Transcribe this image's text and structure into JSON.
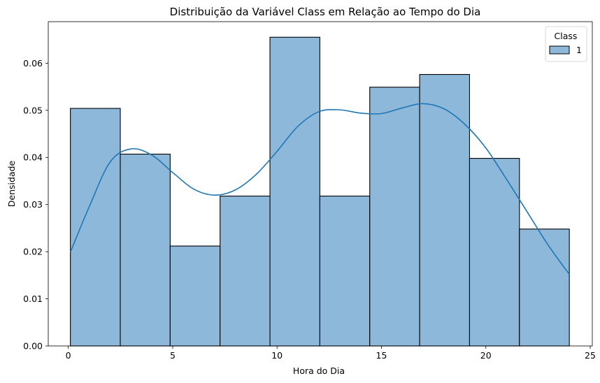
{
  "chart_data": {
    "type": "histogram",
    "title": "Distribuição da Variável Class em Relação ao Tempo do Dia",
    "xlabel": "Hora do Dia",
    "ylabel": "Densidade",
    "xlim": [
      -0.96,
      25.1
    ],
    "ylim": [
      0,
      0.0688
    ],
    "x_ticks": [
      0,
      5,
      10,
      15,
      20,
      25
    ],
    "y_ticks": [
      0.0,
      0.01,
      0.02,
      0.03,
      0.04,
      0.05,
      0.06
    ],
    "y_tick_labels": [
      "0.00",
      "0.01",
      "0.02",
      "0.03",
      "0.04",
      "0.05",
      "0.06"
    ],
    "bins": [
      {
        "x0": 0.1,
        "x1": 2.49,
        "value": 0.0504
      },
      {
        "x0": 2.49,
        "x1": 4.88,
        "value": 0.0407
      },
      {
        "x0": 4.88,
        "x1": 7.27,
        "value": 0.0212
      },
      {
        "x0": 7.27,
        "x1": 9.66,
        "value": 0.0318
      },
      {
        "x0": 9.66,
        "x1": 12.05,
        "value": 0.0655
      },
      {
        "x0": 12.05,
        "x1": 14.44,
        "value": 0.0318
      },
      {
        "x0": 14.44,
        "x1": 16.83,
        "value": 0.0549
      },
      {
        "x0": 16.83,
        "x1": 19.22,
        "value": 0.0576
      },
      {
        "x0": 19.22,
        "x1": 21.61,
        "value": 0.0398
      },
      {
        "x0": 21.61,
        "x1": 24.0,
        "value": 0.0248
      }
    ],
    "kde": {
      "x": [
        0.1,
        1.0,
        2.0,
        3.0,
        4.0,
        5.0,
        6.0,
        7.0,
        8.0,
        9.0,
        10.0,
        11.0,
        12.0,
        13.0,
        14.0,
        15.0,
        16.0,
        17.0,
        18.0,
        19.0,
        20.0,
        21.0,
        22.0,
        23.0,
        24.0
      ],
      "y": [
        0.0199,
        0.0295,
        0.039,
        0.0418,
        0.0405,
        0.0368,
        0.0333,
        0.032,
        0.0331,
        0.0364,
        0.0413,
        0.0466,
        0.0497,
        0.0501,
        0.0494,
        0.0493,
        0.0505,
        0.0514,
        0.0503,
        0.047,
        0.042,
        0.0353,
        0.0283,
        0.0213,
        0.0152
      ]
    },
    "legend": {
      "position": "top-right",
      "title": "Class",
      "entries": [
        {
          "label": "1"
        }
      ]
    },
    "colors": {
      "bar_fill": "#8db8da",
      "bar_edge": "#000000",
      "kde_line": "#1f77b4"
    }
  }
}
